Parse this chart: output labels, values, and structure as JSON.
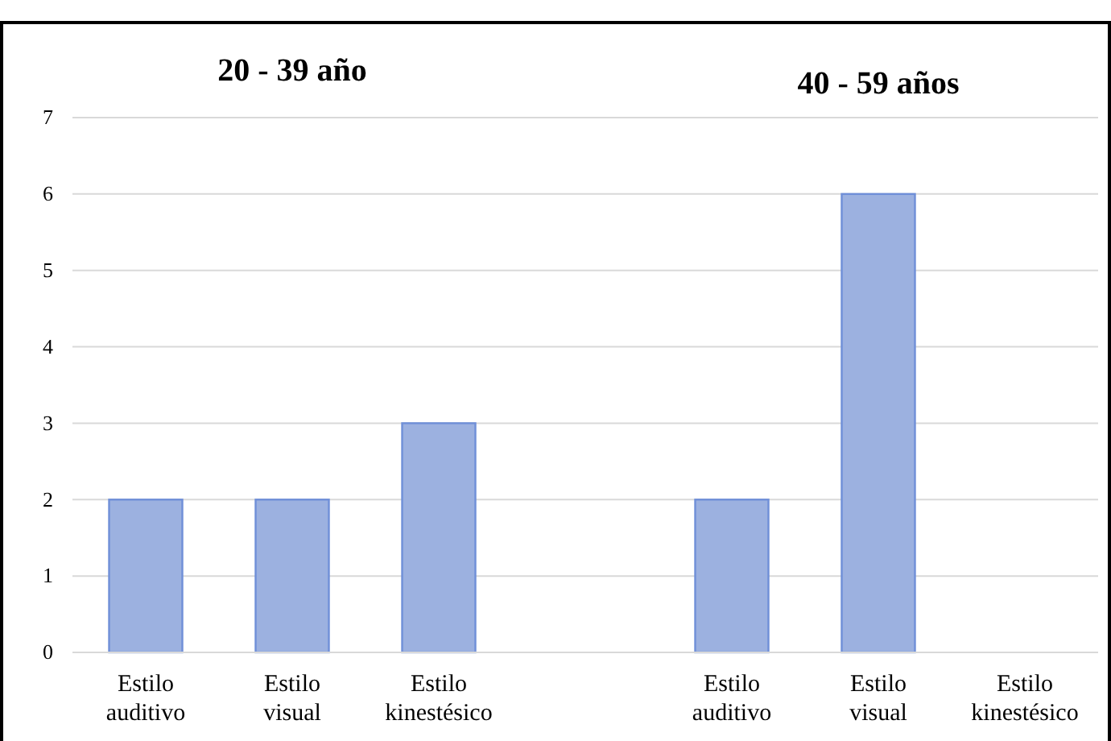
{
  "chart_data": {
    "type": "bar",
    "categories": [
      "Estilo auditivo",
      "Estilo visual",
      "Estilo kinestésico",
      null,
      "Estilo auditivo",
      "Estilo visual",
      "Estilo kinestésico"
    ],
    "values": [
      2,
      2,
      3,
      null,
      2,
      6,
      0
    ],
    "color": "#9cb1e0",
    "ylim": [
      0,
      7
    ],
    "yticks": [
      0,
      1,
      2,
      3,
      4,
      5,
      6,
      7
    ],
    "grid": "y",
    "annotations": [
      "20 - 39 año",
      "40 - 59 años"
    ]
  }
}
